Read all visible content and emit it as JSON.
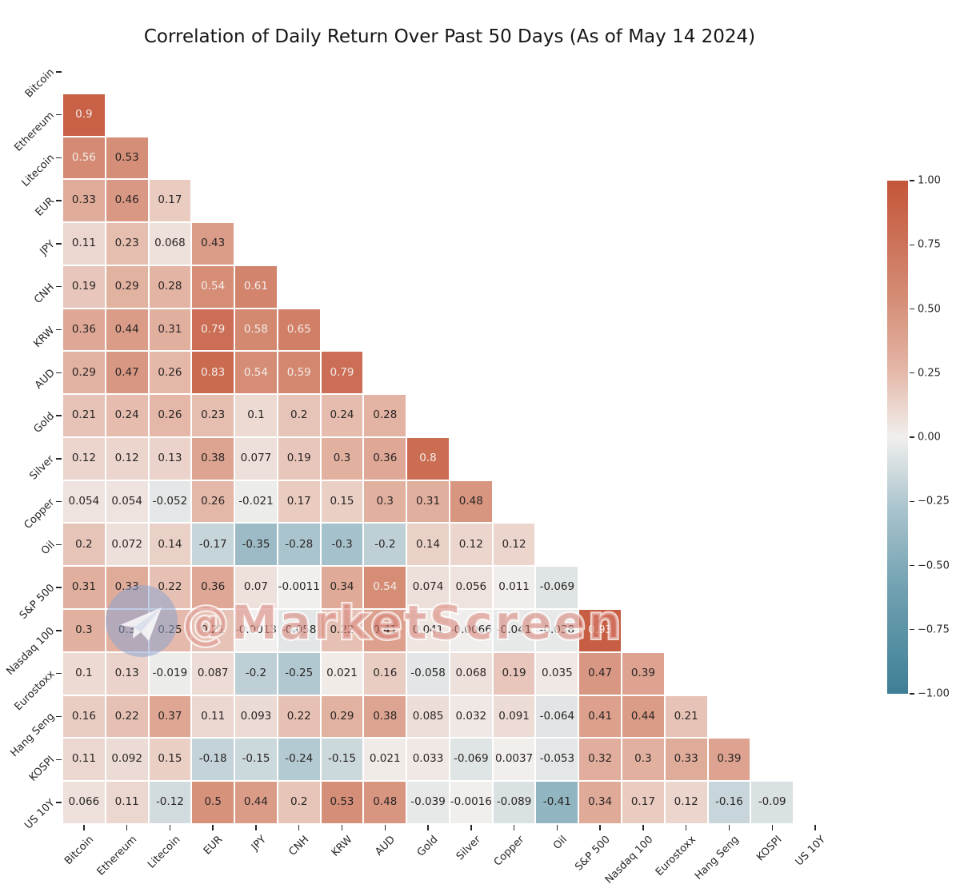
{
  "title": "Correlation of Daily Return Over Past 50 Days (As of May 14 2024)",
  "watermark": {
    "text": "@MarketScreen",
    "icon": "telegram-plane-icon"
  },
  "colors": {
    "background": "#ffffff",
    "cmap_stops": [
      {
        "value": -1.0,
        "rgb": [
          62,
          127,
          150
        ]
      },
      {
        "value": -0.6,
        "rgb": [
          111,
          160,
          176
        ]
      },
      {
        "value": -0.29,
        "rgb": [
          167,
          194,
          204
        ]
      },
      {
        "value": 0.0,
        "rgb": [
          241,
          239,
          237
        ]
      },
      {
        "value": 0.28,
        "rgb": [
          227,
          179,
          163
        ]
      },
      {
        "value": 0.53,
        "rgb": [
          213,
          142,
          119
        ]
      },
      {
        "value": 1.0,
        "rgb": [
          196,
          85,
          57
        ]
      }
    ],
    "annotation_dark": "#2a2524",
    "annotation_light": "#f3ece8",
    "watermark_fill": "rgba(213,125,114,0.55)",
    "watermark_stroke": "rgba(255,255,255,0.75)",
    "watermark_circle": "rgba(141,164,205,0.55)",
    "watermark_plane": "rgba(252,252,252,0.85)"
  },
  "chart_data": {
    "type": "heatmap",
    "title": "Correlation of Daily Return Over Past 50 Days (As of May 14 2024)",
    "mask": "upper-triangle-and-diagonal-hidden",
    "grid": "off",
    "value_range": [
      -1,
      1
    ],
    "categories": [
      "Bitcoin",
      "Ethereum",
      "Litecoin",
      "EUR",
      "JPY",
      "CNH",
      "KRW",
      "AUD",
      "Gold",
      "Silver",
      "Copper",
      "Oil",
      "S&P 500",
      "Nasdaq 100",
      "Eurostoxx",
      "Hang Seng",
      "KOSPI",
      "US 10Y"
    ],
    "rows": [
      {
        "label": "Bitcoin",
        "values": []
      },
      {
        "label": "Ethereum",
        "values": [
          "0.9"
        ]
      },
      {
        "label": "Litecoin",
        "values": [
          "0.56",
          "0.53"
        ]
      },
      {
        "label": "EUR",
        "values": [
          "0.33",
          "0.46",
          "0.17"
        ]
      },
      {
        "label": "JPY",
        "values": [
          "0.11",
          "0.23",
          "0.068",
          "0.43"
        ]
      },
      {
        "label": "CNH",
        "values": [
          "0.19",
          "0.29",
          "0.28",
          "0.54",
          "0.61"
        ]
      },
      {
        "label": "KRW",
        "values": [
          "0.36",
          "0.44",
          "0.31",
          "0.79",
          "0.58",
          "0.65"
        ]
      },
      {
        "label": "AUD",
        "values": [
          "0.29",
          "0.47",
          "0.26",
          "0.83",
          "0.54",
          "0.59",
          "0.79"
        ]
      },
      {
        "label": "Gold",
        "values": [
          "0.21",
          "0.24",
          "0.26",
          "0.23",
          "0.1",
          "0.2",
          "0.24",
          "0.28"
        ]
      },
      {
        "label": "Silver",
        "values": [
          "0.12",
          "0.12",
          "0.13",
          "0.38",
          "0.077",
          "0.19",
          "0.3",
          "0.36",
          "0.8"
        ]
      },
      {
        "label": "Copper",
        "values": [
          "0.054",
          "0.054",
          "-0.052",
          "0.26",
          "-0.021",
          "0.17",
          "0.15",
          "0.3",
          "0.31",
          "0.48"
        ]
      },
      {
        "label": "Oil",
        "values": [
          "0.2",
          "0.072",
          "0.14",
          "-0.17",
          "-0.35",
          "-0.28",
          "-0.3",
          "-0.2",
          "0.14",
          "0.12",
          "0.12"
        ]
      },
      {
        "label": "S&P 500",
        "values": [
          "0.31",
          "0.33",
          "0.22",
          "0.36",
          "0.07",
          "-0.0011",
          "0.34",
          "0.54",
          "0.074",
          "0.056",
          "0.011",
          "-0.069"
        ]
      },
      {
        "label": "Nasdaq 100",
        "values": [
          "0.3",
          "0.3",
          "0.25",
          "0.21",
          "-0.0013",
          "-0.058",
          "0.22",
          "0.41",
          "0.041",
          "-0.0066",
          "-0.041",
          "-0.038",
          "0.93"
        ]
      },
      {
        "label": "Eurostoxx",
        "values": [
          "0.1",
          "0.13",
          "-0.019",
          "0.087",
          "-0.2",
          "-0.25",
          "0.021",
          "0.16",
          "-0.058",
          "0.068",
          "0.19",
          "0.035",
          "0.47",
          "0.39"
        ]
      },
      {
        "label": "Hang Seng",
        "values": [
          "0.16",
          "0.22",
          "0.37",
          "0.11",
          "0.093",
          "0.22",
          "0.29",
          "0.38",
          "0.085",
          "0.032",
          "0.091",
          "-0.064",
          "0.41",
          "0.44",
          "0.21"
        ]
      },
      {
        "label": "KOSPI",
        "values": [
          "0.11",
          "0.092",
          "0.15",
          "-0.18",
          "-0.15",
          "-0.24",
          "-0.15",
          "0.021",
          "0.033",
          "-0.069",
          "0.0037",
          "-0.053",
          "0.32",
          "0.3",
          "0.33",
          "0.39"
        ]
      },
      {
        "label": "US 10Y",
        "values": [
          "0.066",
          "0.11",
          "-0.12",
          "0.5",
          "0.44",
          "0.2",
          "0.53",
          "0.48",
          "-0.039",
          "-0.0016",
          "-0.089",
          "-0.41",
          "0.34",
          "0.17",
          "0.12",
          "-0.16",
          "-0.09"
        ]
      }
    ],
    "colorbar": {
      "position": "right",
      "tick_labels": [
        "1.00",
        "0.75",
        "0.50",
        "0.25",
        "0.00",
        "−0.25",
        "−0.50",
        "−0.75",
        "−1.00"
      ],
      "tick_values": [
        1.0,
        0.75,
        0.5,
        0.25,
        0.0,
        -0.25,
        -0.5,
        -0.75,
        -1.0
      ]
    }
  }
}
